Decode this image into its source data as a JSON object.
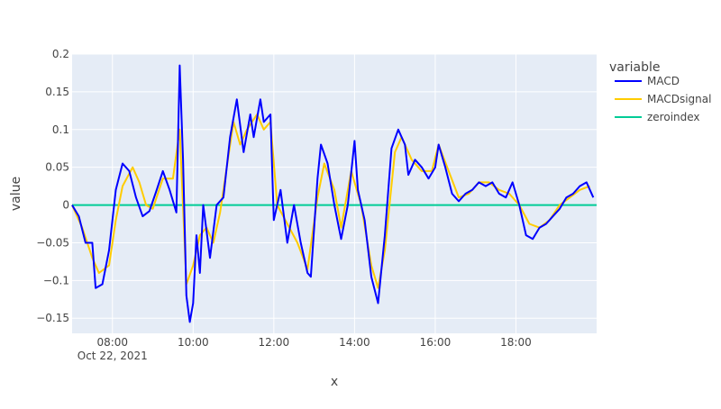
{
  "chart_data": {
    "type": "line",
    "xlabel": "x",
    "ylabel": "value",
    "x_range": [
      "07:00",
      "20:00"
    ],
    "ylim": [
      -0.17,
      0.2
    ],
    "date_label": "Oct 22, 2021",
    "x_ticks": [
      "08:00",
      "10:00",
      "12:00",
      "14:00",
      "16:00",
      "18:00"
    ],
    "y_ticks": [
      {
        "value": 0.2,
        "label": "0.2"
      },
      {
        "value": 0.15,
        "label": "0.15"
      },
      {
        "value": 0.1,
        "label": "0.1"
      },
      {
        "value": 0.05,
        "label": "0.05"
      },
      {
        "value": 0,
        "label": "0"
      },
      {
        "value": -0.05,
        "label": "−0.05"
      },
      {
        "value": -0.1,
        "label": "−0.1"
      },
      {
        "value": -0.15,
        "label": "−0.15"
      }
    ],
    "grid": true,
    "legend": {
      "title": "variable",
      "position": "right"
    },
    "series": [
      {
        "name": "MACD",
        "color": "#0000ff",
        "points": [
          [
            "07:00",
            0.0
          ],
          [
            "07:10",
            -0.015
          ],
          [
            "07:20",
            -0.05
          ],
          [
            "07:30",
            -0.05
          ],
          [
            "07:35",
            -0.11
          ],
          [
            "07:45",
            -0.105
          ],
          [
            "07:55",
            -0.06
          ],
          [
            "08:05",
            0.02
          ],
          [
            "08:15",
            0.055
          ],
          [
            "08:25",
            0.045
          ],
          [
            "08:35",
            0.01
          ],
          [
            "08:45",
            -0.015
          ],
          [
            "08:55",
            -0.008
          ],
          [
            "09:05",
            0.018
          ],
          [
            "09:15",
            0.045
          ],
          [
            "09:25",
            0.02
          ],
          [
            "09:35",
            -0.01
          ],
          [
            "09:40",
            0.185
          ],
          [
            "09:45",
            0.06
          ],
          [
            "09:50",
            -0.12
          ],
          [
            "09:55",
            -0.155
          ],
          [
            "10:00",
            -0.13
          ],
          [
            "10:05",
            -0.04
          ],
          [
            "10:10",
            -0.09
          ],
          [
            "10:15",
            0.0
          ],
          [
            "10:25",
            -0.07
          ],
          [
            "10:35",
            0.0
          ],
          [
            "10:45",
            0.01
          ],
          [
            "10:55",
            0.09
          ],
          [
            "11:05",
            0.14
          ],
          [
            "11:15",
            0.07
          ],
          [
            "11:25",
            0.12
          ],
          [
            "11:30",
            0.09
          ],
          [
            "11:40",
            0.14
          ],
          [
            "11:45",
            0.11
          ],
          [
            "11:55",
            0.12
          ],
          [
            "12:00",
            -0.02
          ],
          [
            "12:10",
            0.02
          ],
          [
            "12:20",
            -0.05
          ],
          [
            "12:30",
            0.0
          ],
          [
            "12:40",
            -0.05
          ],
          [
            "12:50",
            -0.09
          ],
          [
            "12:55",
            -0.095
          ],
          [
            "13:05",
            0.035
          ],
          [
            "13:10",
            0.08
          ],
          [
            "13:20",
            0.055
          ],
          [
            "13:30",
            0.0
          ],
          [
            "13:40",
            -0.045
          ],
          [
            "13:50",
            0.0
          ],
          [
            "14:00",
            0.085
          ],
          [
            "14:05",
            0.02
          ],
          [
            "14:15",
            -0.02
          ],
          [
            "14:25",
            -0.095
          ],
          [
            "14:35",
            -0.13
          ],
          [
            "14:45",
            -0.04
          ],
          [
            "14:55",
            0.075
          ],
          [
            "15:05",
            0.1
          ],
          [
            "15:15",
            0.08
          ],
          [
            "15:20",
            0.04
          ],
          [
            "15:30",
            0.06
          ],
          [
            "15:40",
            0.05
          ],
          [
            "15:50",
            0.035
          ],
          [
            "16:00",
            0.05
          ],
          [
            "16:05",
            0.08
          ],
          [
            "16:15",
            0.05
          ],
          [
            "16:25",
            0.015
          ],
          [
            "16:35",
            0.005
          ],
          [
            "16:45",
            0.015
          ],
          [
            "16:55",
            0.02
          ],
          [
            "17:05",
            0.03
          ],
          [
            "17:15",
            0.025
          ],
          [
            "17:25",
            0.03
          ],
          [
            "17:35",
            0.015
          ],
          [
            "17:45",
            0.01
          ],
          [
            "17:55",
            0.03
          ],
          [
            "18:05",
            0.0
          ],
          [
            "18:15",
            -0.04
          ],
          [
            "18:25",
            -0.045
          ],
          [
            "18:35",
            -0.03
          ],
          [
            "18:45",
            -0.025
          ],
          [
            "18:55",
            -0.015
          ],
          [
            "19:05",
            -0.005
          ],
          [
            "19:15",
            0.01
          ],
          [
            "19:25",
            0.015
          ],
          [
            "19:35",
            0.025
          ],
          [
            "19:45",
            0.03
          ],
          [
            "19:55",
            0.01
          ]
        ]
      },
      {
        "name": "MACDsignal",
        "color": "#ffcc00",
        "points": [
          [
            "07:00",
            0.0
          ],
          [
            "07:15",
            -0.03
          ],
          [
            "07:30",
            -0.07
          ],
          [
            "07:40",
            -0.09
          ],
          [
            "07:55",
            -0.08
          ],
          [
            "08:05",
            -0.02
          ],
          [
            "08:15",
            0.025
          ],
          [
            "08:30",
            0.05
          ],
          [
            "08:40",
            0.03
          ],
          [
            "08:50",
            0.0
          ],
          [
            "09:00",
            -0.005
          ],
          [
            "09:15",
            0.035
          ],
          [
            "09:30",
            0.035
          ],
          [
            "09:40",
            0.1
          ],
          [
            "09:50",
            -0.105
          ],
          [
            "10:00",
            -0.08
          ],
          [
            "10:10",
            -0.04
          ],
          [
            "10:20",
            -0.03
          ],
          [
            "10:30",
            -0.05
          ],
          [
            "10:40",
            -0.01
          ],
          [
            "10:50",
            0.05
          ],
          [
            "11:00",
            0.11
          ],
          [
            "11:10",
            0.08
          ],
          [
            "11:20",
            0.1
          ],
          [
            "11:35",
            0.12
          ],
          [
            "11:45",
            0.1
          ],
          [
            "11:55",
            0.11
          ],
          [
            "12:05",
            0.0
          ],
          [
            "12:20",
            -0.025
          ],
          [
            "12:35",
            -0.05
          ],
          [
            "12:50",
            -0.085
          ],
          [
            "13:05",
            0.01
          ],
          [
            "13:15",
            0.055
          ],
          [
            "13:30",
            0.02
          ],
          [
            "13:40",
            -0.03
          ],
          [
            "13:55",
            0.045
          ],
          [
            "14:10",
            0.0
          ],
          [
            "14:25",
            -0.08
          ],
          [
            "14:35",
            -0.11
          ],
          [
            "14:45",
            -0.06
          ],
          [
            "15:00",
            0.07
          ],
          [
            "15:10",
            0.09
          ],
          [
            "15:25",
            0.06
          ],
          [
            "15:40",
            0.045
          ],
          [
            "15:55",
            0.045
          ],
          [
            "16:05",
            0.08
          ],
          [
            "16:20",
            0.045
          ],
          [
            "16:35",
            0.01
          ],
          [
            "16:50",
            0.015
          ],
          [
            "17:05",
            0.03
          ],
          [
            "17:20",
            0.03
          ],
          [
            "17:35",
            0.02
          ],
          [
            "17:50",
            0.015
          ],
          [
            "18:05",
            0.0
          ],
          [
            "18:20",
            -0.025
          ],
          [
            "18:35",
            -0.03
          ],
          [
            "18:50",
            -0.02
          ],
          [
            "19:05",
            0.0
          ],
          [
            "19:20",
            0.01
          ],
          [
            "19:35",
            0.02
          ],
          [
            "19:50",
            0.025
          ]
        ]
      },
      {
        "name": "zeroindex",
        "color": "#00cc96",
        "points": [
          [
            "07:00",
            0
          ],
          [
            "20:00",
            0
          ]
        ]
      }
    ]
  }
}
